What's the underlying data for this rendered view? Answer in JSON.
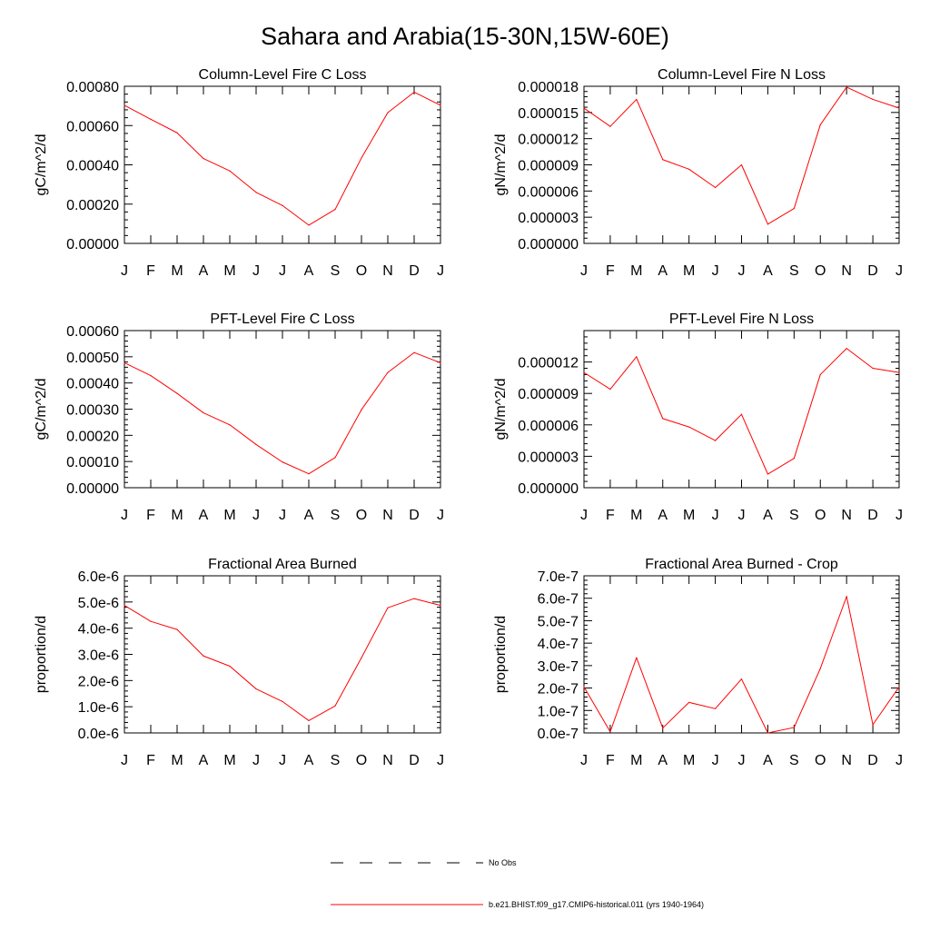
{
  "page": {
    "title": "Sahara and Arabia(15-30N,15W-60E)"
  },
  "style": {
    "series_color": "#ff0000",
    "axis_color": "#000000",
    "background": "#ffffff"
  },
  "legend": {
    "items": [
      {
        "label": "No Obs",
        "line_style": "dashed",
        "color": "#000000"
      },
      {
        "label": "b.e21.BHIST.f09_g17.CMIP6-historical.011 (yrs 1940-1964)",
        "line_style": "solid",
        "color": "#ff0000"
      }
    ]
  },
  "chart_data": [
    {
      "type": "line",
      "title": "Column-Level Fire C Loss",
      "ylabel": "gC/m^2/d",
      "xlabel": "",
      "categories": [
        "J",
        "F",
        "M",
        "A",
        "M",
        "J",
        "J",
        "A",
        "S",
        "O",
        "N",
        "D",
        "J"
      ],
      "ylim": [
        0,
        0.0008
      ],
      "yticks": [
        "0.00000",
        "0.00020",
        "0.00040",
        "0.00060",
        "0.00080"
      ],
      "ytick_values": [
        0,
        0.0002,
        0.0004,
        0.0006,
        0.0008
      ],
      "series": [
        {
          "name": "b.e21.BHIST.f09_g17.CMIP6-historical.011 (yrs 1940-1964)",
          "color": "#ff0000",
          "values": [
            0.000703,
            0.000632,
            0.000563,
            0.000432,
            0.000369,
            0.00026,
            0.000193,
            9.3e-05,
            0.000173,
            0.000435,
            0.000666,
            0.00077,
            0.000703
          ]
        }
      ]
    },
    {
      "type": "line",
      "title": "Column-Level Fire N Loss",
      "ylabel": "gN/m^2/d",
      "xlabel": "",
      "categories": [
        "J",
        "F",
        "M",
        "A",
        "M",
        "J",
        "J",
        "A",
        "S",
        "O",
        "N",
        "D",
        "J"
      ],
      "ylim": [
        0,
        1.8e-05
      ],
      "yticks": [
        "0.000000",
        "0.000003",
        "0.000006",
        "0.000009",
        "0.000012",
        "0.000015",
        "0.000018"
      ],
      "ytick_values": [
        0,
        3e-06,
        6e-06,
        9e-06,
        1.2e-05,
        1.5e-05,
        1.8e-05
      ],
      "series": [
        {
          "name": "b.e21.BHIST.f09_g17.CMIP6-historical.011 (yrs 1940-1964)",
          "color": "#ff0000",
          "values": [
            1.55e-05,
            1.34e-05,
            1.65e-05,
            9.6e-06,
            8.5e-06,
            6.4e-06,
            9e-06,
            2.2e-06,
            4e-06,
            1.36e-05,
            1.79e-05,
            1.65e-05,
            1.55e-05
          ]
        }
      ]
    },
    {
      "type": "line",
      "title": "PFT-Level Fire C Loss",
      "ylabel": "gC/m^2/d",
      "xlabel": "",
      "categories": [
        "J",
        "F",
        "M",
        "A",
        "M",
        "J",
        "J",
        "A",
        "S",
        "O",
        "N",
        "D",
        "J"
      ],
      "ylim": [
        0,
        0.0006
      ],
      "yticks": [
        "0.00000",
        "0.00010",
        "0.00020",
        "0.00030",
        "0.00040",
        "0.00050",
        "0.00060"
      ],
      "ytick_values": [
        0,
        0.0001,
        0.0002,
        0.0003,
        0.0004,
        0.0005,
        0.0006
      ],
      "series": [
        {
          "name": "b.e21.BHIST.f09_g17.CMIP6-historical.011 (yrs 1940-1964)",
          "color": "#ff0000",
          "values": [
            0.000477,
            0.000428,
            0.00036,
            0.000286,
            0.00024,
            0.000165,
            9.8e-05,
            5.3e-05,
            0.000115,
            0.000298,
            0.00044,
            0.000516,
            0.000477
          ]
        }
      ]
    },
    {
      "type": "line",
      "title": "PFT-Level Fire N Loss",
      "ylabel": "gN/m^2/d",
      "xlabel": "",
      "categories": [
        "J",
        "F",
        "M",
        "A",
        "M",
        "J",
        "J",
        "A",
        "S",
        "O",
        "N",
        "D",
        "J"
      ],
      "ylim": [
        0,
        1.5e-05
      ],
      "yticks": [
        "0.000000",
        "0.000003",
        "0.000006",
        "0.000009",
        "0.000012"
      ],
      "ytick_values": [
        0,
        3e-06,
        6e-06,
        9e-06,
        1.2e-05
      ],
      "series": [
        {
          "name": "b.e21.BHIST.f09_g17.CMIP6-historical.011 (yrs 1940-1964)",
          "color": "#ff0000",
          "values": [
            1.1e-05,
            9.4e-06,
            1.25e-05,
            6.6e-06,
            5.8e-06,
            4.5e-06,
            7e-06,
            1.3e-06,
            2.8e-06,
            1.08e-05,
            1.33e-05,
            1.14e-05,
            1.1e-05
          ]
        }
      ]
    },
    {
      "type": "line",
      "title": "Fractional Area Burned",
      "ylabel": "proportion/d",
      "xlabel": "",
      "categories": [
        "J",
        "F",
        "M",
        "A",
        "M",
        "J",
        "J",
        "A",
        "S",
        "O",
        "N",
        "D",
        "J"
      ],
      "ylim": [
        0,
        6e-06
      ],
      "yticks": [
        "0.0e-6",
        "1.0e-6",
        "2.0e-6",
        "3.0e-6",
        "4.0e-6",
        "5.0e-6",
        "6.0e-6"
      ],
      "ytick_values": [
        0,
        1e-06,
        2e-06,
        3e-06,
        4e-06,
        5e-06,
        6e-06
      ],
      "series": [
        {
          "name": "b.e21.BHIST.f09_g17.CMIP6-historical.011 (yrs 1940-1964)",
          "color": "#ff0000",
          "values": [
            4.87e-06,
            4.26e-06,
            3.95e-06,
            2.94e-06,
            2.55e-06,
            1.68e-06,
            1.2e-06,
            4.7e-07,
            1.03e-06,
            2.87e-06,
            4.78e-06,
            5.13e-06,
            4.87e-06
          ]
        }
      ]
    },
    {
      "type": "line",
      "title": "Fractional Area Burned - Crop",
      "ylabel": "proportion/d",
      "xlabel": "",
      "categories": [
        "J",
        "F",
        "M",
        "A",
        "M",
        "J",
        "J",
        "A",
        "S",
        "O",
        "N",
        "D",
        "J"
      ],
      "ylim": [
        0,
        7e-07
      ],
      "yticks": [
        "0.0e-7",
        "1.0e-7",
        "2.0e-7",
        "3.0e-7",
        "4.0e-7",
        "5.0e-7",
        "6.0e-7",
        "7.0e-7"
      ],
      "ytick_values": [
        0,
        1e-07,
        2e-07,
        3e-07,
        4e-07,
        5e-07,
        6e-07,
        7e-07
      ],
      "series": [
        {
          "name": "b.e21.BHIST.f09_g17.CMIP6-historical.011 (yrs 1940-1964)",
          "color": "#ff0000",
          "values": [
            2.05e-07,
            5e-09,
            3.35e-07,
            2.2e-08,
            1.36e-07,
            1.08e-07,
            2.4e-07,
            0.0,
            2.4e-08,
            2.87e-07,
            6.08e-07,
            3.7e-08,
            2.05e-07
          ]
        }
      ]
    }
  ]
}
